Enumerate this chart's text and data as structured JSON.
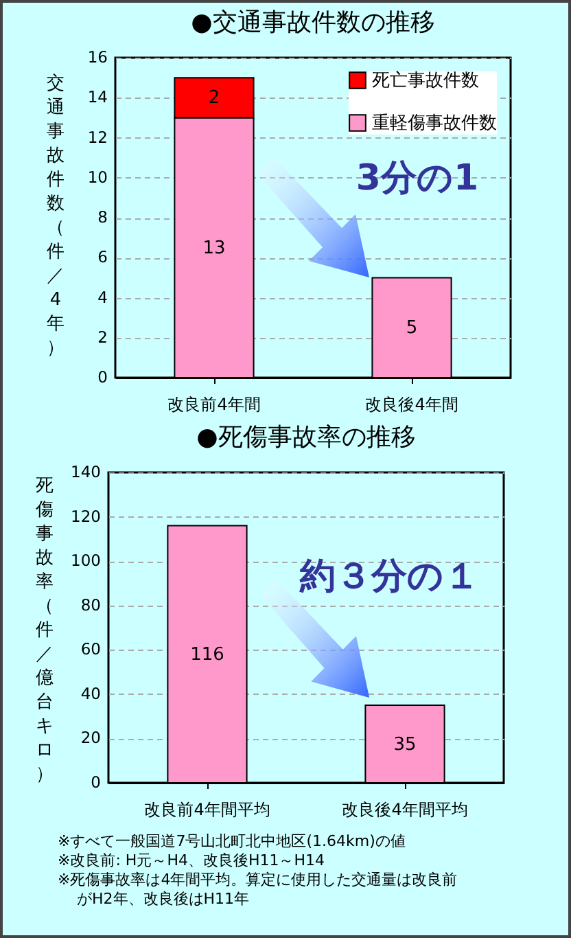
{
  "chart_data": [
    {
      "type": "bar",
      "title": "●交通事故件数の推移",
      "ylabel": "交通事故件数（件／4年）",
      "categories": [
        "改良前4年間",
        "改良後4年間"
      ],
      "stacked": true,
      "series": [
        {
          "name": "重軽傷事故件数",
          "color": "#ff99cc",
          "values": [
            13,
            5
          ]
        },
        {
          "name": "死亡事故件数",
          "color": "#ff0000",
          "values": [
            2,
            null
          ]
        }
      ],
      "ylim": [
        0,
        16
      ],
      "yticks": [
        0,
        2,
        4,
        6,
        8,
        10,
        12,
        14,
        16
      ],
      "grid": "y",
      "legend": "top right",
      "data_labels": true,
      "annotations": [
        "3分の1"
      ]
    },
    {
      "type": "bar",
      "title": "●死傷事故率の推移",
      "ylabel": "死傷事故率（件／億台キロ）",
      "categories": [
        "改良前4年間平均",
        "改良後4年間平均"
      ],
      "values": [
        116,
        35
      ],
      "color": "#ff99cc",
      "ylim": [
        0,
        140
      ],
      "yticks": [
        0,
        20,
        40,
        60,
        80,
        100,
        120,
        140
      ],
      "grid": "y",
      "data_labels": true,
      "annotations": [
        "約３分の１",
        "※すべて一般国道7号山北町北中地区(1.64km)の値",
        "※改良前: H元～H4、改良後H11～H14",
        "※死傷事故率は4年間平均。算定に使用した交通量は改良前がH2年、改良後はH11年"
      ]
    }
  ]
}
